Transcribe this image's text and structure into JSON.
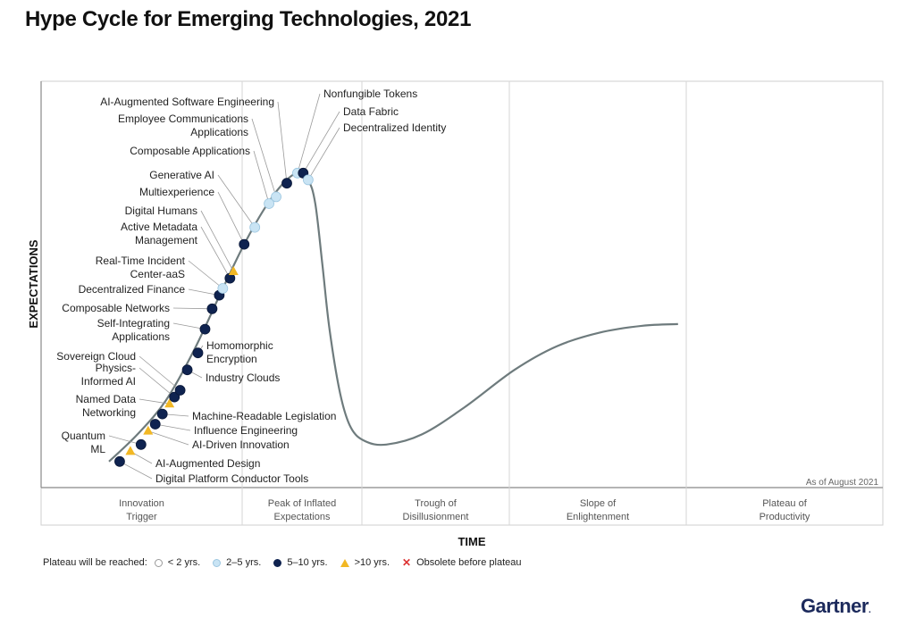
{
  "title": "Hype Cycle for Emerging Technologies, 2021",
  "as_of": "As of August 2021",
  "brand": "Gartner",
  "brand_mark": ".",
  "colors": {
    "lt2": "#ffffff",
    "2to5": "#c9e4f4",
    "5to10": "#0f2350",
    "gt10": "#f2b824",
    "obsolete": "#d33333",
    "curve": "#6e7b7d"
  },
  "legend": {
    "intro": "Plateau will be reached:",
    "items": [
      {
        "label": "< 2 yrs.",
        "category": "lt2"
      },
      {
        "label": "2–5 yrs.",
        "category": "2to5"
      },
      {
        "label": "5–10 yrs.",
        "category": "5to10"
      },
      {
        "label": ">10 yrs.",
        "category": "gt10"
      },
      {
        "label": "Obsolete before plateau",
        "category": "obsolete"
      }
    ]
  },
  "chart_data": {
    "type": "scatter",
    "xlabel": "TIME",
    "ylabel": "EXPECTATIONS",
    "phases": [
      [
        "Innovation",
        "Trigger"
      ],
      [
        "Peak of Inflated",
        "Expectations"
      ],
      [
        "Trough of",
        "Disillusionment"
      ],
      [
        "Slope of",
        "Enlightenment"
      ],
      [
        "Plateau of",
        "Productivity"
      ]
    ],
    "x_domain": [
      0,
      100
    ],
    "y_domain": [
      0,
      100
    ],
    "curve_y": [
      [
        0,
        4
      ],
      [
        4,
        12
      ],
      [
        8,
        22
      ],
      [
        12,
        37
      ],
      [
        16,
        55
      ],
      [
        19,
        68
      ],
      [
        22,
        79
      ],
      [
        24.5,
        86
      ],
      [
        26.5,
        89
      ],
      [
        28,
        87
      ],
      [
        29,
        80
      ],
      [
        30,
        62
      ],
      [
        31,
        43
      ],
      [
        32.5,
        24
      ],
      [
        34,
        14
      ],
      [
        36,
        10
      ],
      [
        39,
        9
      ],
      [
        44,
        12
      ],
      [
        50,
        20
      ],
      [
        57,
        31
      ],
      [
        63,
        38
      ],
      [
        69,
        42
      ],
      [
        75,
        44
      ],
      [
        80,
        44.5
      ]
    ],
    "technologies": [
      {
        "name": [
          "Digital Platform Conductor Tools"
        ],
        "x": 1.5,
        "y": 4,
        "category": "5to10"
      },
      {
        "name": [
          "AI-Augmented Design"
        ],
        "x": 3,
        "y": 7,
        "category": "gt10"
      },
      {
        "name": [
          "Quantum",
          "ML"
        ],
        "x": 4.5,
        "y": 9,
        "category": "5to10"
      },
      {
        "name": [
          "AI-Driven Innovation"
        ],
        "x": 5.5,
        "y": 13,
        "category": "gt10"
      },
      {
        "name": [
          "Influence Engineering"
        ],
        "x": 6.5,
        "y": 15,
        "category": "5to10"
      },
      {
        "name": [
          "Machine-Readable Legislation"
        ],
        "x": 7.5,
        "y": 18,
        "category": "5to10"
      },
      {
        "name": [
          "Named Data",
          "Networking"
        ],
        "x": 8.5,
        "y": 21,
        "category": "gt10"
      },
      {
        "name": [
          "Physics-",
          "Informed AI"
        ],
        "x": 9.2,
        "y": 23,
        "category": "5to10"
      },
      {
        "name": [
          "Sovereign Cloud"
        ],
        "x": 10,
        "y": 25,
        "category": "5to10"
      },
      {
        "name": [
          "Industry Clouds"
        ],
        "x": 11,
        "y": 31,
        "category": "5to10"
      },
      {
        "name": [
          "Homomorphic",
          "Encryption"
        ],
        "x": 12.5,
        "y": 36,
        "category": "5to10"
      },
      {
        "name": [
          "Self-Integrating",
          "Applications"
        ],
        "x": 13.5,
        "y": 43,
        "category": "5to10"
      },
      {
        "name": [
          "Composable Networks"
        ],
        "x": 14.5,
        "y": 49,
        "category": "5to10"
      },
      {
        "name": [
          "Decentralized Finance"
        ],
        "x": 15.5,
        "y": 53,
        "category": "5to10"
      },
      {
        "name": [
          "Real-Time Incident",
          "Center-aaS"
        ],
        "x": 16,
        "y": 55,
        "category": "2to5"
      },
      {
        "name": [
          "Active Metadata",
          "Management"
        ],
        "x": 17,
        "y": 58,
        "category": "5to10"
      },
      {
        "name": [
          "Digital Humans"
        ],
        "x": 17.5,
        "y": 60,
        "category": "gt10"
      },
      {
        "name": [
          "Multiexperience"
        ],
        "x": 19,
        "y": 68,
        "category": "5to10"
      },
      {
        "name": [
          "Generative AI"
        ],
        "x": 20.5,
        "y": 73,
        "category": "2to5"
      },
      {
        "name": [
          "Composable Applications"
        ],
        "x": 22.5,
        "y": 80,
        "category": "2to5"
      },
      {
        "name": [
          "Employee Communications",
          "Applications"
        ],
        "x": 23.5,
        "y": 82,
        "category": "2to5"
      },
      {
        "name": [
          "AI-Augmented Software Engineering"
        ],
        "x": 25,
        "y": 86,
        "category": "5to10"
      },
      {
        "name": [
          "Nonfungible Tokens"
        ],
        "x": 26.5,
        "y": 89,
        "category": "2to5"
      },
      {
        "name": [
          "Data Fabric"
        ],
        "x": 27.3,
        "y": 89,
        "category": "5to10"
      },
      {
        "name": [
          "Decentralized Identity"
        ],
        "x": 28,
        "y": 87,
        "category": "2to5"
      }
    ]
  }
}
